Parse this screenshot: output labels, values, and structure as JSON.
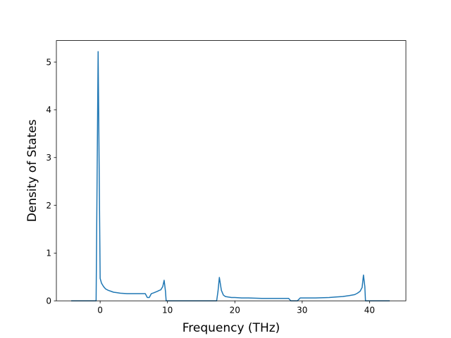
{
  "chart_data": {
    "type": "line",
    "title": "",
    "xlabel": "Frequency (THz)",
    "ylabel": "Density of States",
    "xlim": [
      -6.5,
      45.4
    ],
    "ylim": [
      0,
      5.45
    ],
    "xticks": [
      0,
      10,
      20,
      30,
      40
    ],
    "xtick_labels": [
      "0",
      "10",
      "20",
      "30",
      "40"
    ],
    "yticks": [
      0,
      1,
      2,
      3,
      4,
      5
    ],
    "ytick_labels": [
      "0",
      "1",
      "2",
      "3",
      "4",
      "5"
    ],
    "grid": false,
    "series": [
      {
        "color": "#1f77b4",
        "x": [
          -4.3,
          -0.6,
          -0.3,
          0.0,
          0.2,
          0.5,
          0.8,
          1.2,
          1.6,
          2.0,
          2.5,
          3.0,
          4.0,
          5.0,
          6.0,
          6.7,
          7.0,
          7.3,
          7.6,
          8.0,
          8.5,
          8.8,
          9.0,
          9.3,
          9.5,
          9.7,
          9.8,
          10.0,
          12.0,
          15.0,
          17.3,
          17.5,
          17.7,
          18.0,
          18.3,
          18.6,
          19.0,
          19.5,
          20.0,
          21.0,
          22.0,
          24.0,
          26.0,
          28.0,
          28.3,
          29.3,
          29.7,
          30.0,
          32.0,
          34.0,
          35.0,
          36.0,
          37.0,
          37.8,
          38.2,
          38.6,
          38.9,
          39.1,
          39.3,
          39.4,
          39.6,
          43.0
        ],
        "y": [
          0,
          0,
          5.22,
          0.47,
          0.37,
          0.3,
          0.25,
          0.22,
          0.2,
          0.18,
          0.17,
          0.16,
          0.15,
          0.15,
          0.15,
          0.15,
          0.07,
          0.07,
          0.15,
          0.17,
          0.2,
          0.22,
          0.23,
          0.3,
          0.43,
          0.2,
          0,
          0,
          0,
          0,
          0,
          0.2,
          0.49,
          0.22,
          0.12,
          0.09,
          0.08,
          0.07,
          0.07,
          0.06,
          0.06,
          0.05,
          0.05,
          0.05,
          0,
          0,
          0.06,
          0.06,
          0.06,
          0.07,
          0.08,
          0.09,
          0.11,
          0.13,
          0.16,
          0.2,
          0.28,
          0.54,
          0.3,
          0,
          0,
          0
        ]
      }
    ]
  }
}
